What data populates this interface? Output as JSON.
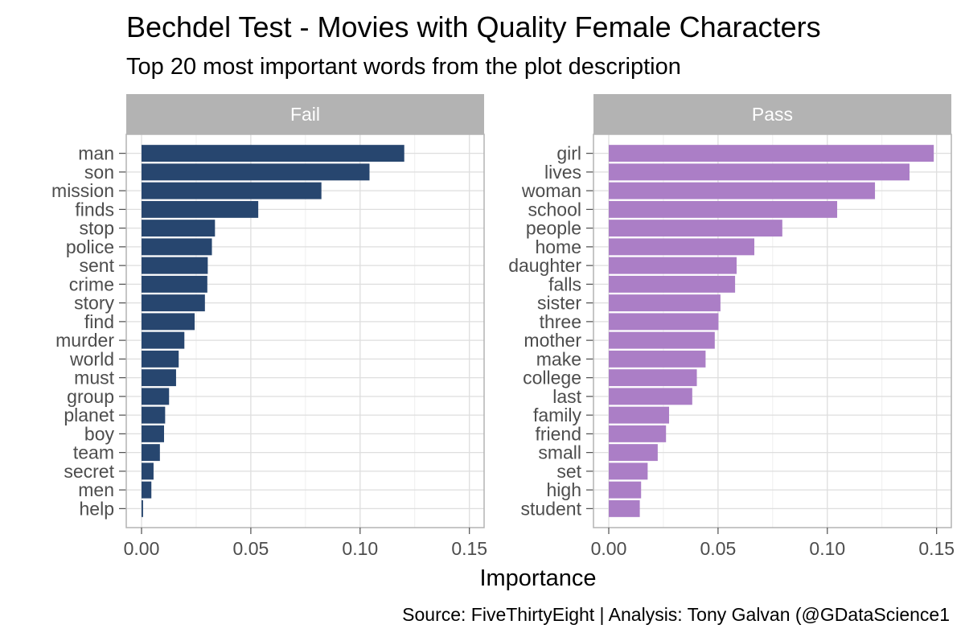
{
  "chart_data": {
    "type": "bar",
    "orientation": "horizontal",
    "title": "Bechdel Test - Movies with Quality Female Characters",
    "subtitle": "Top 20 most important words from the plot description",
    "xlabel": "Importance",
    "caption": "Source: FiveThirtyEight  |  Analysis: Tony Galvan (@GDataScience1",
    "xlim": [
      0,
      0.155
    ],
    "x_ticks": [
      0.0,
      0.05,
      0.1,
      0.15
    ],
    "x_tick_labels": [
      "0.00",
      "0.05",
      "0.10",
      "0.15"
    ],
    "grid": true,
    "legend": "none",
    "panels": [
      {
        "name": "Fail",
        "color": "#27466f",
        "categories": [
          "man",
          "son",
          "mission",
          "finds",
          "stop",
          "police",
          "sent",
          "crime",
          "story",
          "find",
          "murder",
          "world",
          "must",
          "group",
          "planet",
          "boy",
          "team",
          "secret",
          "men",
          "help"
        ],
        "values": [
          0.1202,
          0.1043,
          0.0823,
          0.0534,
          0.0336,
          0.0322,
          0.0303,
          0.0301,
          0.029,
          0.0243,
          0.0196,
          0.017,
          0.0158,
          0.0126,
          0.0108,
          0.0103,
          0.0084,
          0.0055,
          0.0045,
          0.0007
        ]
      },
      {
        "name": "Pass",
        "color": "#ab7ec6",
        "categories": [
          "girl",
          "lives",
          "woman",
          "school",
          "people",
          "home",
          "daughter",
          "falls",
          "sister",
          "three",
          "mother",
          "make",
          "college",
          "last",
          "family",
          "friend",
          "small",
          "set",
          "high",
          "student"
        ],
        "values": [
          0.1487,
          0.1376,
          0.1218,
          0.1045,
          0.0794,
          0.0666,
          0.0585,
          0.0578,
          0.0511,
          0.0502,
          0.0485,
          0.0443,
          0.0403,
          0.0382,
          0.0276,
          0.0262,
          0.0224,
          0.0178,
          0.0148,
          0.0142
        ]
      }
    ]
  }
}
